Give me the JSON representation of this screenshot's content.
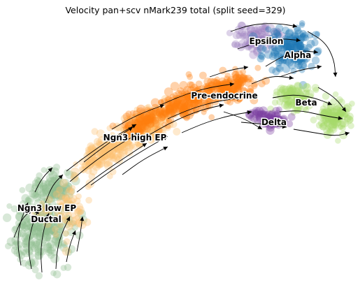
{
  "chart_data": {
    "type": "scatter",
    "title": "Velocity pan+scv nMark239 total (split seed=329)",
    "xlabel": "",
    "ylabel": "",
    "axes_visible": false,
    "grid": false,
    "legend": "on data",
    "overlay": "velocity streamlines with arrowheads",
    "clusters": [
      {
        "name": "Ngn3 low EP",
        "color": "#8fbc8f"
      },
      {
        "name": "Ductal",
        "color": "#8fbc8f"
      },
      {
        "name": "Ngn3 high EP",
        "color": "#fdbf6f"
      },
      {
        "name": "Pre-endocrine",
        "color": "#ff7f0e"
      },
      {
        "name": "Epsilon",
        "color": "#9e80c0"
      },
      {
        "name": "Alpha",
        "color": "#1f77b4"
      },
      {
        "name": "Beta",
        "color": "#a6d96a"
      },
      {
        "name": "Delta",
        "color": "#7b3fa0"
      }
    ]
  }
}
